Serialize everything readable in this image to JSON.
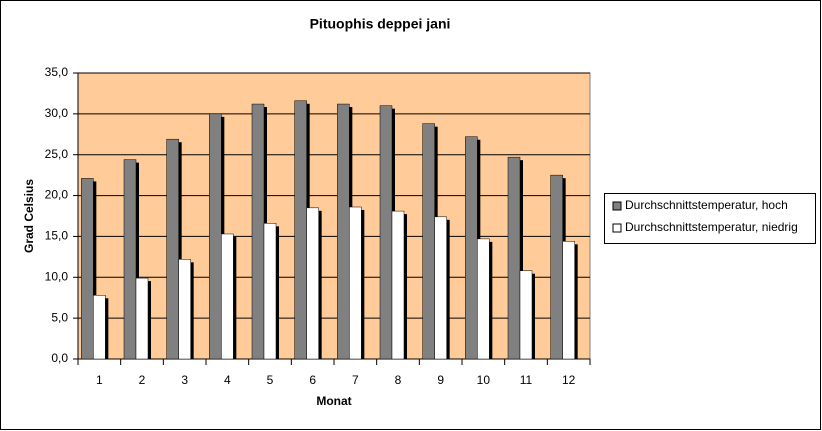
{
  "chart_data": {
    "type": "bar",
    "title": "Pituophis deppei jani",
    "x_label": "Monat",
    "y_label": "Grad Celsius",
    "categories": [
      "1",
      "2",
      "3",
      "4",
      "5",
      "6",
      "7",
      "8",
      "9",
      "10",
      "11",
      "12"
    ],
    "series": [
      {
        "name": "Durchschnittstemperatur, hoch",
        "color": "#808080",
        "values": [
          22.1,
          24.4,
          26.9,
          30.0,
          31.2,
          31.6,
          31.2,
          31.0,
          28.8,
          27.2,
          24.7,
          22.5
        ]
      },
      {
        "name": "Durchschnittstemperatur, niedrig",
        "color": "#ffffff",
        "values": [
          7.8,
          9.9,
          12.2,
          15.3,
          16.6,
          18.5,
          18.6,
          18.1,
          17.4,
          14.7,
          10.8,
          14.4
        ]
      }
    ],
    "ylim": [
      0,
      35
    ],
    "yticks": [
      {
        "value": 0,
        "label": "0,0"
      },
      {
        "value": 5,
        "label": "5,0"
      },
      {
        "value": 10,
        "label": "10,0"
      },
      {
        "value": 15,
        "label": "15,0"
      },
      {
        "value": 20,
        "label": "20,0"
      },
      {
        "value": 25,
        "label": "25,0"
      },
      {
        "value": 30,
        "label": "30,0"
      },
      {
        "value": 35,
        "label": "35,0"
      }
    ],
    "grid": true,
    "plot_background": "#ffcc99",
    "legend_position": "right"
  }
}
